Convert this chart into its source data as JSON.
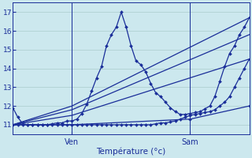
{
  "xlabel": "Température (°c)",
  "background_color": "#cce8ee",
  "grid_color": "#aacccc",
  "line_color": "#1a2e99",
  "ylim": [
    10.5,
    17.5
  ],
  "xlim": [
    0,
    48
  ],
  "yticks": [
    11,
    12,
    13,
    14,
    15,
    16,
    17
  ],
  "xtick_positions": [
    12,
    36
  ],
  "xtick_labels": [
    "Ven",
    "Sam"
  ],
  "series": [
    {
      "x": [
        0,
        1,
        2,
        3,
        4,
        5,
        6,
        7,
        8,
        9,
        10,
        11,
        12,
        13,
        14,
        15,
        16,
        17,
        18,
        19,
        20,
        21,
        22,
        23,
        24,
        25,
        26,
        27,
        28,
        29,
        30,
        31,
        32,
        33,
        34,
        35,
        36,
        37,
        38,
        39,
        40,
        41,
        42,
        43,
        44,
        45,
        46,
        47,
        48
      ],
      "y": [
        11.9,
        11.4,
        11.05,
        11.0,
        11.0,
        11.0,
        11.0,
        11.0,
        11.05,
        11.1,
        11.1,
        11.2,
        11.2,
        11.3,
        11.6,
        12.1,
        12.8,
        13.5,
        14.1,
        15.2,
        15.8,
        16.2,
        17.0,
        16.2,
        15.2,
        14.4,
        14.2,
        13.8,
        13.2,
        12.7,
        12.5,
        12.2,
        11.9,
        11.7,
        11.55,
        11.55,
        11.6,
        11.65,
        11.7,
        11.85,
        12.0,
        12.5,
        13.3,
        14.1,
        14.8,
        15.2,
        15.8,
        16.2,
        16.7
      ],
      "style": "-",
      "marker": true
    },
    {
      "x": [
        0,
        1,
        2,
        3,
        4,
        5,
        6,
        7,
        8,
        9,
        10,
        11,
        12,
        13,
        14,
        15,
        16,
        17,
        18,
        19,
        20,
        21,
        22,
        23,
        24,
        25,
        26,
        27,
        28,
        29,
        30,
        31,
        32,
        33,
        34,
        35,
        36,
        37,
        38,
        39,
        40,
        41,
        42,
        43,
        44,
        45,
        46,
        47,
        48
      ],
      "y": [
        11.0,
        11.0,
        11.0,
        11.0,
        11.0,
        11.0,
        11.0,
        11.0,
        11.0,
        11.0,
        11.0,
        11.0,
        11.0,
        11.0,
        11.0,
        11.0,
        11.0,
        11.0,
        11.0,
        11.0,
        11.0,
        11.0,
        11.0,
        11.0,
        11.0,
        11.0,
        11.0,
        11.0,
        11.0,
        11.05,
        11.1,
        11.1,
        11.15,
        11.2,
        11.3,
        11.4,
        11.5,
        11.55,
        11.6,
        11.65,
        11.7,
        11.8,
        12.0,
        12.2,
        12.5,
        13.0,
        13.5,
        14.0,
        14.5
      ],
      "style": "-",
      "marker": true
    },
    {
      "x": [
        0,
        12,
        48
      ],
      "y": [
        11.0,
        12.0,
        16.7
      ],
      "style": "-",
      "marker": false
    },
    {
      "x": [
        0,
        12,
        48
      ],
      "y": [
        11.0,
        11.8,
        15.8
      ],
      "style": "-",
      "marker": false
    },
    {
      "x": [
        0,
        12,
        48
      ],
      "y": [
        11.0,
        11.5,
        14.5
      ],
      "style": "-",
      "marker": false
    },
    {
      "x": [
        0,
        12,
        36,
        48
      ],
      "y": [
        11.0,
        11.0,
        11.3,
        12.0
      ],
      "style": "-",
      "marker": true
    }
  ],
  "linewidth": 0.9,
  "markersize": 2.0
}
